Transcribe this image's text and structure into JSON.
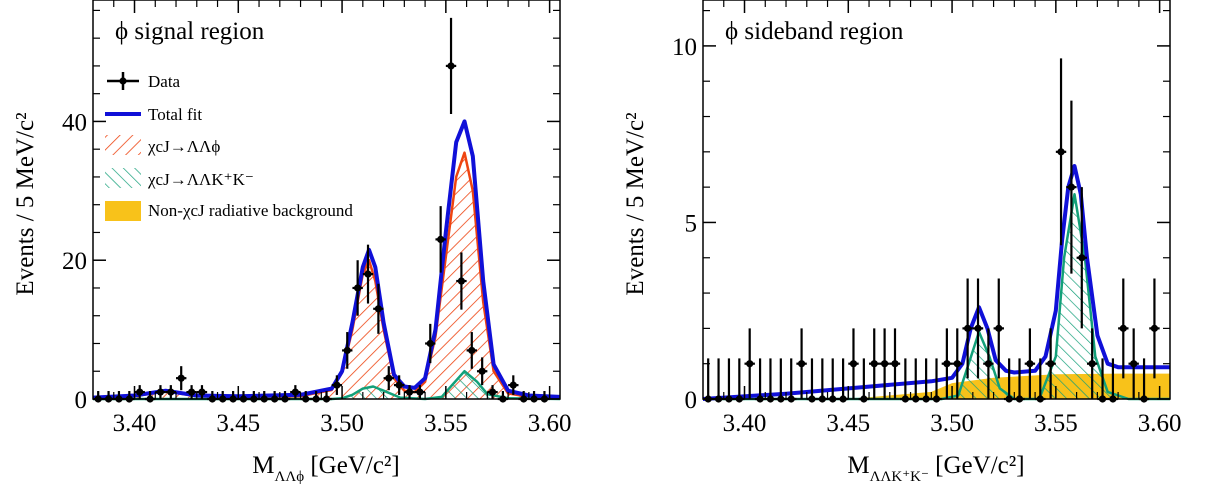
{
  "colors": {
    "data": "#000000",
    "total_fit": "#1010d8",
    "phi_component": "#ee4411",
    "kk_component": "#13a079",
    "nonchi_background": "#f8c21a"
  },
  "chart_data": [
    {
      "type": "line",
      "panel_label": "ϕ signal region",
      "xlabel": {
        "main": "M",
        "sub": "ΛΛϕ",
        "unit": " [GeV/c²]"
      },
      "ylabel": "Events / 5 MeV/c²",
      "xlim": [
        3.38,
        3.605
      ],
      "ylim": [
        0,
        57.5
      ],
      "xticks": [
        "3.40",
        "3.45",
        "3.50",
        "3.55",
        "3.60"
      ],
      "yticks": [
        "0",
        "20",
        "40"
      ],
      "legend": {
        "placement": "top-left",
        "entries": [
          {
            "kind": "data",
            "label": "Data"
          },
          {
            "kind": "line",
            "label": "Total fit"
          },
          {
            "kind": "hatch-phi",
            "label": "χcJ→ΛΛϕ"
          },
          {
            "kind": "hatch-kk",
            "label": "χcJ→ΛΛK⁺K⁻"
          },
          {
            "kind": "fill-bg",
            "label": "Non-χcJ radiative background"
          }
        ]
      },
      "data_points": {
        "x": [
          3.3825,
          3.3875,
          3.3925,
          3.3975,
          3.4025,
          3.4075,
          3.4125,
          3.4175,
          3.4225,
          3.4275,
          3.4325,
          3.4375,
          3.4425,
          3.4475,
          3.4525,
          3.4575,
          3.4625,
          3.4675,
          3.4725,
          3.4775,
          3.4825,
          3.4875,
          3.4925,
          3.4975,
          3.5025,
          3.5075,
          3.5125,
          3.5175,
          3.5225,
          3.5275,
          3.5325,
          3.5375,
          3.5425,
          3.5475,
          3.5525,
          3.5575,
          3.5625,
          3.5675,
          3.5725,
          3.5775,
          3.5825,
          3.5875,
          3.5925,
          3.5975
        ],
        "y": [
          0,
          0,
          0,
          0,
          1,
          0,
          1,
          1,
          3,
          1,
          1,
          0,
          0,
          0,
          0,
          0,
          0,
          0,
          0,
          1,
          0,
          0,
          0,
          2,
          7,
          16,
          18,
          13,
          3,
          2,
          1,
          1,
          8,
          23,
          48,
          17,
          7,
          4,
          1,
          0,
          2,
          0,
          0,
          0
        ]
      },
      "series": [
        {
          "name": "Total fit",
          "x": [
            3.38,
            3.4,
            3.415,
            3.43,
            3.45,
            3.48,
            3.495,
            3.5,
            3.505,
            3.51,
            3.513,
            3.516,
            3.52,
            3.525,
            3.53,
            3.535,
            3.54,
            3.545,
            3.55,
            3.555,
            3.559,
            3.563,
            3.568,
            3.573,
            3.58,
            3.59,
            3.605
          ],
          "y": [
            0.2,
            0.5,
            1.2,
            0.5,
            0.4,
            0.6,
            1.5,
            4,
            11,
            19,
            21.5,
            19,
            11,
            3.5,
            1.8,
            1.6,
            3,
            10,
            24,
            37,
            40,
            35,
            17,
            5,
            1.2,
            0.5,
            0.3
          ]
        },
        {
          "name": "χcJ→ΛΛϕ",
          "x": [
            3.38,
            3.4,
            3.415,
            3.43,
            3.45,
            3.48,
            3.495,
            3.5,
            3.505,
            3.51,
            3.513,
            3.516,
            3.52,
            3.525,
            3.53,
            3.535,
            3.54,
            3.545,
            3.555,
            3.559,
            3.563,
            3.568,
            3.573,
            3.58,
            3.59,
            3.605
          ],
          "y": [
            0.1,
            0.4,
            1.1,
            0.4,
            0.3,
            0.4,
            1.3,
            3.8,
            10,
            18,
            20,
            17,
            10,
            3,
            1.2,
            1,
            2.5,
            9,
            32,
            35.5,
            30,
            14,
            4,
            0.8,
            0.3,
            0.1
          ]
        },
        {
          "name": "χcJ→ΛΛK⁺K⁻",
          "x": [
            3.38,
            3.495,
            3.5,
            3.505,
            3.51,
            3.515,
            3.52,
            3.528,
            3.54,
            3.548,
            3.553,
            3.559,
            3.565,
            3.57,
            3.58,
            3.605
          ],
          "y": [
            0,
            0,
            0.1,
            0.6,
            1.5,
            1.8,
            1.2,
            0.2,
            0,
            0.3,
            2,
            4,
            2.5,
            0.7,
            0.1,
            0
          ]
        }
      ]
    },
    {
      "type": "line",
      "panel_label": "ϕ sideband region",
      "xlabel": {
        "main": "M",
        "sub": "ΛΛK⁺K⁻",
        "unit": " [GeV/c²]"
      },
      "ylabel": "Events / 5 MeV/c²",
      "xlim": [
        3.38,
        3.605
      ],
      "ylim": [
        0,
        11.3
      ],
      "xticks": [
        "3.40",
        "3.45",
        "3.50",
        "3.55",
        "3.60"
      ],
      "yticks": [
        "0",
        "5",
        "10"
      ],
      "data_points": {
        "x": [
          3.3825,
          3.3875,
          3.3925,
          3.3975,
          3.4025,
          3.4075,
          3.4125,
          3.4175,
          3.4225,
          3.4275,
          3.4325,
          3.4375,
          3.4425,
          3.4475,
          3.4525,
          3.4575,
          3.4625,
          3.4675,
          3.4725,
          3.4775,
          3.4825,
          3.4875,
          3.4925,
          3.4975,
          3.5025,
          3.5075,
          3.5125,
          3.5175,
          3.5225,
          3.5275,
          3.5325,
          3.5375,
          3.5425,
          3.5475,
          3.5525,
          3.5575,
          3.5625,
          3.5675,
          3.5725,
          3.5775,
          3.5825,
          3.5875,
          3.5925,
          3.5975
        ],
        "y": [
          0,
          0,
          0,
          0,
          1,
          0,
          0,
          0,
          0,
          1,
          0,
          0,
          0,
          0,
          1,
          0,
          1,
          1,
          1,
          0,
          0,
          0,
          0,
          1,
          1,
          2,
          2,
          1,
          2,
          0,
          0,
          1,
          0,
          1,
          7,
          6,
          4,
          1,
          0,
          0,
          2,
          1,
          0,
          2
        ]
      },
      "series": [
        {
          "name": "Total fit",
          "x": [
            3.38,
            3.42,
            3.46,
            3.49,
            3.5,
            3.505,
            3.509,
            3.513,
            3.517,
            3.521,
            3.526,
            3.53,
            3.54,
            3.545,
            3.55,
            3.553,
            3.556,
            3.559,
            3.562,
            3.565,
            3.57,
            3.575,
            3.58,
            3.59,
            3.605
          ],
          "y": [
            0,
            0.15,
            0.35,
            0.5,
            0.6,
            1,
            2,
            2.6,
            2,
            1.1,
            0.8,
            0.75,
            0.8,
            1.2,
            2.5,
            4.5,
            6,
            6.6,
            5.8,
            4,
            1.8,
            1,
            0.9,
            0.9,
            0.9
          ]
        },
        {
          "name": "χcJ→ΛΛK⁺K⁻",
          "x": [
            3.38,
            3.495,
            3.503,
            3.508,
            3.513,
            3.518,
            3.523,
            3.53,
            3.542,
            3.55,
            3.554,
            3.559,
            3.564,
            3.569,
            3.575,
            3.585,
            3.605
          ],
          "y": [
            0,
            0,
            0.1,
            1,
            1.9,
            1.2,
            0.3,
            0,
            0,
            1.2,
            4,
            5.8,
            4,
            1.2,
            0.2,
            0,
            0
          ]
        },
        {
          "name": "Non-χcJ radiative background",
          "x": [
            3.38,
            3.45,
            3.49,
            3.5,
            3.52,
            3.55,
            3.58,
            3.605
          ],
          "y": [
            0,
            0,
            0.2,
            0.45,
            0.6,
            0.7,
            0.72,
            0.72
          ]
        }
      ]
    }
  ]
}
